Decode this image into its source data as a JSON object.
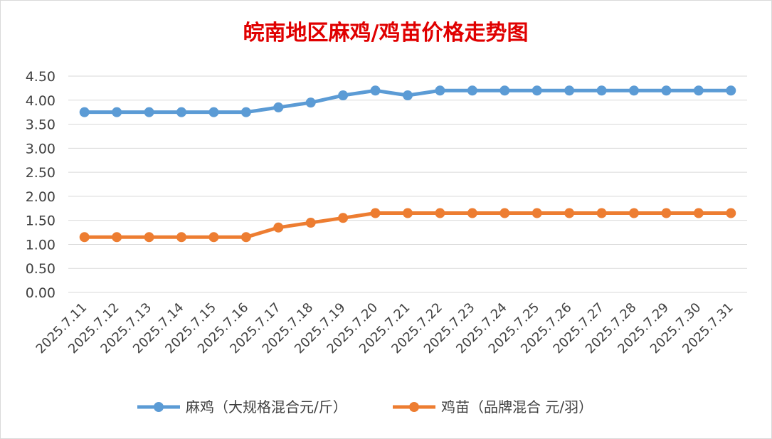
{
  "chart_data": {
    "type": "line",
    "title": "皖南地区麻鸡/鸡苗价格走势图",
    "categories": [
      "2025.7.11",
      "2025.7.12",
      "2025.7.13",
      "2025.7.14",
      "2025.7.15",
      "2025.7.16",
      "2025.7.17",
      "2025.7.18",
      "2025.7.19",
      "2025.7.20",
      "2025.7.21",
      "2025.7.22",
      "2025.7.23",
      "2025.7.24",
      "2025.7.25",
      "2025.7.26",
      "2025.7.27",
      "2025.7.28",
      "2025.7.29",
      "2025.7.30",
      "2025.7.31"
    ],
    "series": [
      {
        "name": "麻鸡（大规格混合元/斤）",
        "color": "#5b9bd5",
        "values": [
          3.75,
          3.75,
          3.75,
          3.75,
          3.75,
          3.75,
          3.85,
          3.95,
          4.1,
          4.2,
          4.1,
          4.2,
          4.2,
          4.2,
          4.2,
          4.2,
          4.2,
          4.2,
          4.2,
          4.2,
          4.2
        ]
      },
      {
        "name": "鸡苗（品牌混合 元/羽）",
        "color": "#ed7d31",
        "values": [
          1.15,
          1.15,
          1.15,
          1.15,
          1.15,
          1.15,
          1.35,
          1.45,
          1.55,
          1.65,
          1.65,
          1.65,
          1.65,
          1.65,
          1.65,
          1.65,
          1.65,
          1.65,
          1.65,
          1.65,
          1.65
        ]
      }
    ],
    "ylim": [
      0,
      4.5
    ],
    "yticks": [
      "0.00",
      "0.50",
      "1.00",
      "1.50",
      "2.00",
      "2.50",
      "3.00",
      "3.50",
      "4.00",
      "4.50"
    ],
    "xlabel": "",
    "ylabel": "",
    "grid": true,
    "legend_position": "bottom"
  }
}
